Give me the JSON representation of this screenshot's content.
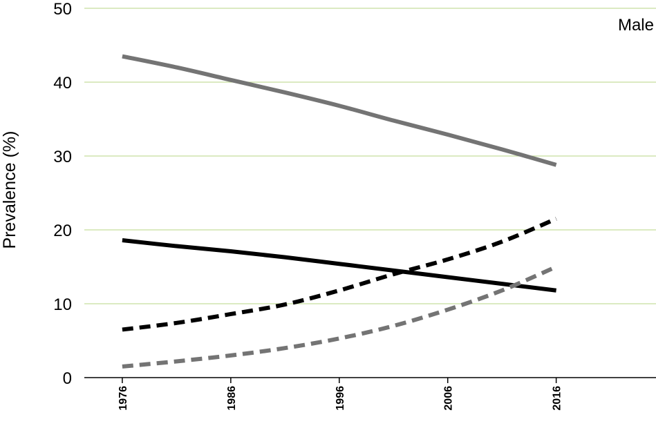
{
  "chart_data": {
    "type": "line",
    "title": "",
    "panel_label": "Male",
    "xlabel": "",
    "ylabel": "Prevalence (%)",
    "ylim": [
      0,
      50
    ],
    "yticks": [
      0,
      10,
      20,
      30,
      40,
      50
    ],
    "xticks": [
      1976,
      1986,
      1996,
      2006,
      2016
    ],
    "grid": "horizontal",
    "x": [
      1976,
      1981,
      1986,
      1991,
      1996,
      2001,
      2006,
      2011,
      2016
    ],
    "series": [
      {
        "values": [
          43.5,
          42.0,
          40.3,
          38.6,
          36.8,
          34.8,
          32.9,
          30.9,
          28.8
        ],
        "color": "#747474",
        "dash": "solid"
      },
      {
        "values": [
          18.6,
          17.8,
          17.1,
          16.3,
          15.4,
          14.5,
          13.6,
          12.7,
          11.8
        ],
        "color": "#000000",
        "dash": "solid"
      },
      {
        "values": [
          6.5,
          7.4,
          8.6,
          9.9,
          11.8,
          14.0,
          16.0,
          18.4,
          21.5
        ],
        "color": "#000000",
        "dash": "dashed"
      },
      {
        "values": [
          1.5,
          2.2,
          3.0,
          4.0,
          5.3,
          7.0,
          9.2,
          11.8,
          15.0
        ],
        "color": "#747474",
        "dash": "dashed"
      }
    ]
  }
}
